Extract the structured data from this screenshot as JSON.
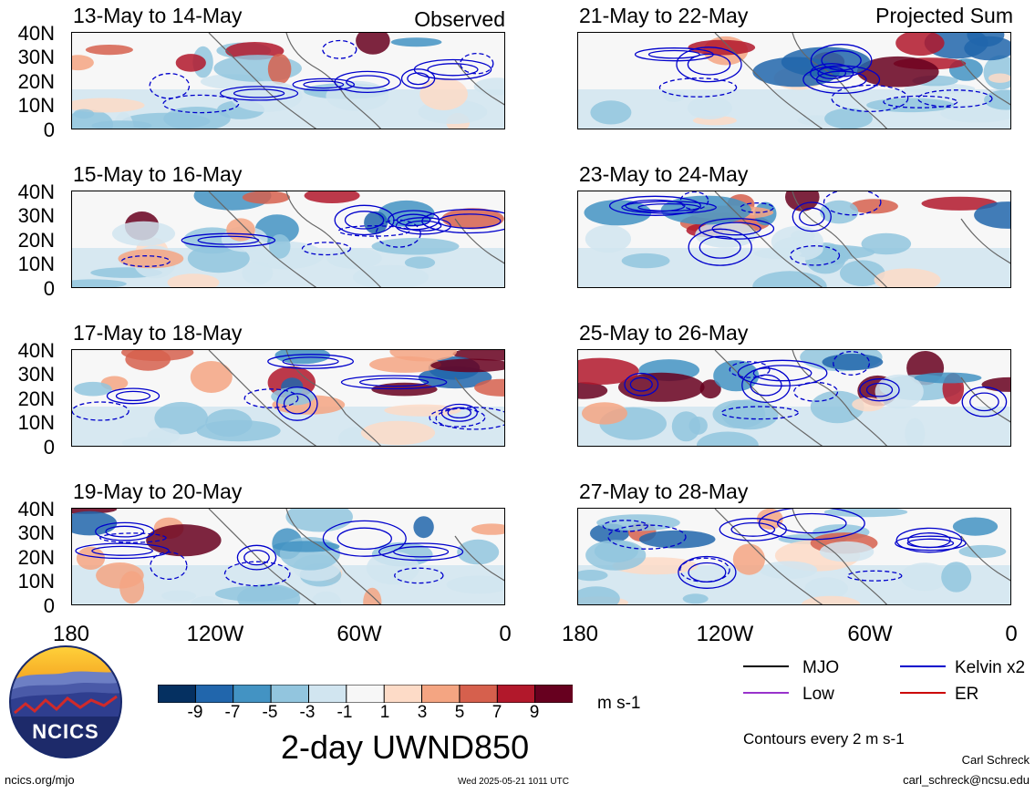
{
  "columns": {
    "left_header": "Observed",
    "right_header": "Projected Sum"
  },
  "panels": [
    {
      "title": "13-May to 14-May",
      "column": "left"
    },
    {
      "title": "15-May to 16-May",
      "column": "left"
    },
    {
      "title": "17-May to 18-May",
      "column": "left"
    },
    {
      "title": "19-May to 20-May",
      "column": "left"
    },
    {
      "title": "21-May to 22-May",
      "column": "right"
    },
    {
      "title": "23-May to 24-May",
      "column": "right"
    },
    {
      "title": "25-May to 26-May",
      "column": "right"
    },
    {
      "title": "27-May to 28-May",
      "column": "right"
    }
  ],
  "lat_labels": [
    "40N",
    "30N",
    "20N",
    "10N",
    "0"
  ],
  "lon_labels": [
    "180",
    "120W",
    "60W",
    "0"
  ],
  "colorbar": {
    "labels": [
      "-9",
      "-7",
      "-5",
      "-3",
      "-1",
      "1",
      "3",
      "5",
      "7",
      "9"
    ],
    "colors": [
      "#053061",
      "#2166ac",
      "#4393c3",
      "#92c5de",
      "#d1e5f0",
      "#f7f7f7",
      "#fddbc7",
      "#f4a582",
      "#d6604d",
      "#b2182b",
      "#67001f"
    ],
    "units": "m s-1"
  },
  "title": "2-day UWND850",
  "legend": {
    "items": [
      {
        "label": "MJO",
        "color": "#000000"
      },
      {
        "label": "Kelvin x2",
        "color": "#0000cc"
      },
      {
        "label": "Low",
        "color": "#9933cc"
      },
      {
        "label": "ER",
        "color": "#cc0000"
      }
    ],
    "contour_note": "Contours every 2 m s-1"
  },
  "logo_text": "NCICS",
  "footer": {
    "url": "ncics.org/mjo",
    "timestamp": "Wed 2025-05-21 1011 UTC",
    "author": "Carl Schreck",
    "email": "carl_schreck@ncsu.edu"
  }
}
